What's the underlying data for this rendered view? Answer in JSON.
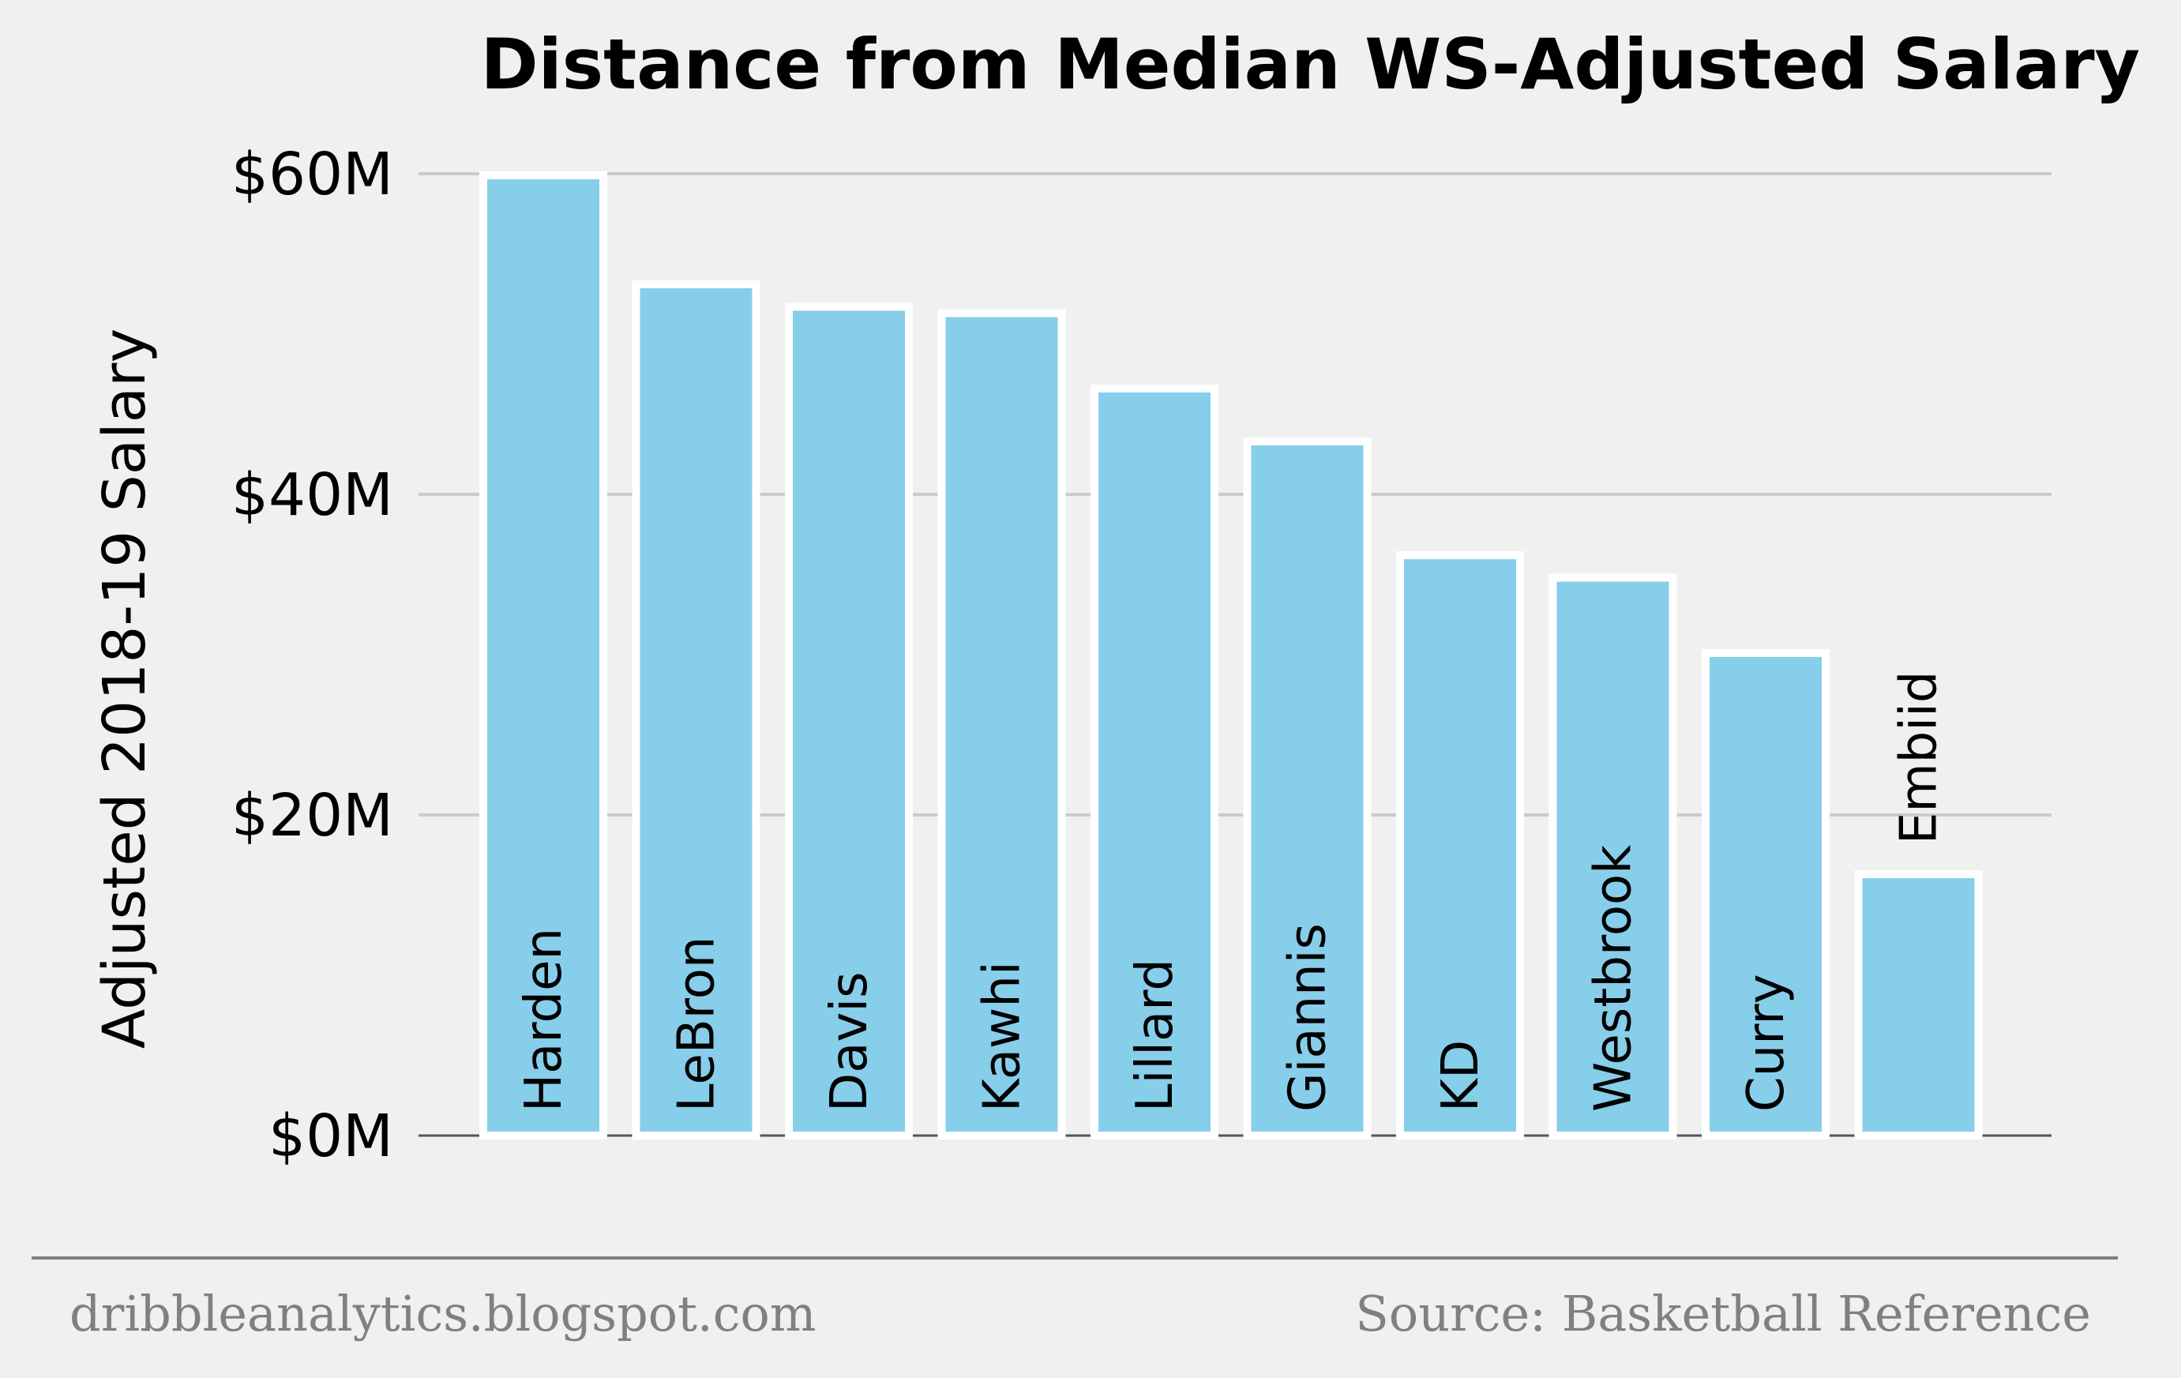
{
  "chart_data": {
    "type": "bar",
    "title": "Distance from Median WS-Adjusted Salary",
    "ylabel": "Adjusted 2018-19 Salary",
    "xlabel": "",
    "categories": [
      "Harden",
      "LeBron",
      "Davis",
      "Kawhi",
      "Lillard",
      "Giannis",
      "KD",
      "Westbrook",
      "Curry",
      "Embiid"
    ],
    "values": [
      59.9,
      53.1,
      51.7,
      51.3,
      46.6,
      43.3,
      36.2,
      34.8,
      30.1,
      16.3
    ],
    "ylim": [
      0,
      60
    ],
    "yticks": [
      0,
      20,
      40,
      60
    ],
    "ytick_labels": [
      "$0M",
      "$20M",
      "$40M",
      "$60M"
    ],
    "grid": "horizontal",
    "bar_color": "#87ceeb",
    "bar_edge_color": "#ffffff",
    "background": "#f0f0f0"
  },
  "footer": {
    "left": "dribbleanalytics.blogspot.com",
    "right": "Source: Basketball Reference"
  }
}
